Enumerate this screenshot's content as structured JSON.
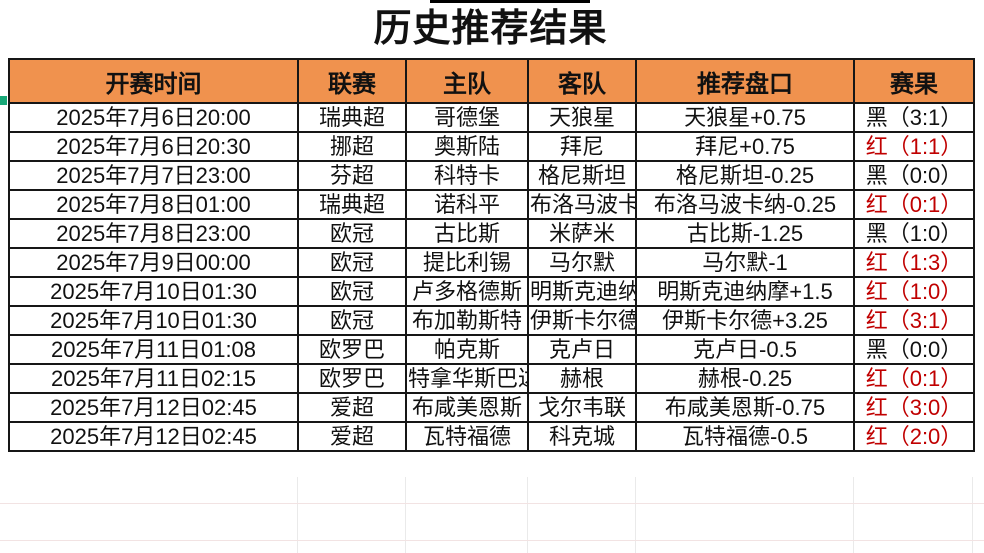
{
  "title": "历史推荐结果",
  "colors": {
    "header_bg": "#F0924E",
    "result_red": "#C00000",
    "table_border": "#161616",
    "selection_mark_teal": "#18A878",
    "empty_grid_line": "#EAEAEA"
  },
  "table": {
    "columns": [
      {
        "key": "time",
        "label": "开赛时间"
      },
      {
        "key": "league",
        "label": "联赛"
      },
      {
        "key": "home",
        "label": "主队"
      },
      {
        "key": "away",
        "label": "客队"
      },
      {
        "key": "handicap",
        "label": "推荐盘口"
      },
      {
        "key": "result",
        "label": "赛果"
      }
    ],
    "rows": [
      {
        "time": "2025年7月6日20:00",
        "league": "瑞典超",
        "home": "哥德堡",
        "away": "天狼星",
        "handicap": "天狼星+0.75",
        "result": "黑（3:1）",
        "result_color": "black"
      },
      {
        "time": "2025年7月6日20:30",
        "league": "挪超",
        "home": "奥斯陆",
        "away": "拜尼",
        "handicap": "拜尼+0.75",
        "result": "红（1:1）",
        "result_color": "red"
      },
      {
        "time": "2025年7月7日23:00",
        "league": "芬超",
        "home": "科特卡",
        "away": "格尼斯坦",
        "handicap": "格尼斯坦-0.25",
        "result": "黑（0:0）",
        "result_color": "black"
      },
      {
        "time": "2025年7月8日01:00",
        "league": "瑞典超",
        "home": "诺科平",
        "away": "布洛马波卡纳",
        "handicap": "布洛马波卡纳-0.25",
        "result": "红（0:1）",
        "result_color": "red"
      },
      {
        "time": "2025年7月8日23:00",
        "league": "欧冠",
        "home": "古比斯",
        "away": "米萨米",
        "handicap": "古比斯-1.25",
        "result": "黑（1:0）",
        "result_color": "black"
      },
      {
        "time": "2025年7月9日00:00",
        "league": "欧冠",
        "home": "提比利锡",
        "away": "马尔默",
        "handicap": "马尔默-1",
        "result": "红（1:3）",
        "result_color": "red"
      },
      {
        "time": "2025年7月10日01:30",
        "league": "欧冠",
        "home": "卢多格德斯",
        "away": "明斯克迪纳摩",
        "handicap": "明斯克迪纳摩+1.5",
        "result": "红（1:0）",
        "result_color": "red"
      },
      {
        "time": "2025年7月10日01:30",
        "league": "欧冠",
        "home": "布加勒斯特",
        "away": "伊斯卡尔德",
        "handicap": "伊斯卡尔德+3.25",
        "result": "红（3:1）",
        "result_color": "red"
      },
      {
        "time": "2025年7月11日01:08",
        "league": "欧罗巴",
        "home": "帕克斯",
        "away": "克卢日",
        "handicap": "克卢日-0.5",
        "result": "黑（0:0）",
        "result_color": "black"
      },
      {
        "time": "2025年7月11日02:15",
        "league": "欧罗巴",
        "home": "特拿华斯巴达",
        "away": "赫根",
        "handicap": "赫根-0.25",
        "result": "红（0:1）",
        "result_color": "red"
      },
      {
        "time": "2025年7月12日02:45",
        "league": "爱超",
        "home": "布咸美恩斯",
        "away": "戈尔韦联",
        "handicap": "布咸美恩斯-0.75",
        "result": "红（3:0）",
        "result_color": "red"
      },
      {
        "time": "2025年7月12日02:45",
        "league": "爱超",
        "home": "瓦特福德",
        "away": "科克城",
        "handicap": "瓦特福德-0.5",
        "result": "红（2:0）",
        "result_color": "red"
      }
    ]
  }
}
